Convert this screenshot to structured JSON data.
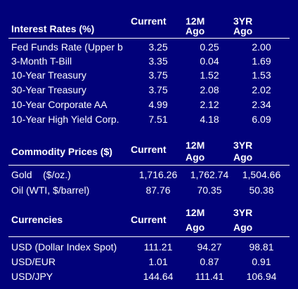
{
  "interest": {
    "header": {
      "label": "Interest Rates (%)",
      "current": "Current",
      "m12_top": "12M",
      "m12_bot": "Ago",
      "y3_top": "3YR",
      "y3_bot": "Ago"
    },
    "rows": [
      {
        "name": "Fed Funds Rate (Upper b",
        "current": "3.25",
        "m12": "0.25",
        "y3": "2.00"
      },
      {
        "name": "3-Month T-Bill",
        "current": "3.35",
        "m12": "0.04",
        "y3": "1.69"
      },
      {
        "name": "10-Year Treasury",
        "current": "3.75",
        "m12": "1.52",
        "y3": "1.53"
      },
      {
        "name": "30-Year Treasury",
        "current": "3.75",
        "m12": "2.08",
        "y3": "2.02"
      },
      {
        "name": "10-Year Corporate AA",
        "current": "4.99",
        "m12": "2.12",
        "y3": "2.34"
      },
      {
        "name": "10-Year High Yield Corp.",
        "current": "7.51",
        "m12": "4.18",
        "y3": "6.09"
      }
    ]
  },
  "commodity": {
    "header": {
      "label": "Commodity Prices ($)",
      "current": "Current",
      "m12_top": "12M",
      "m12_bot": "Ago",
      "y3_top": "3YR",
      "y3_bot": "Ago"
    },
    "rows": [
      {
        "name": "Gold    ($/oz.)",
        "current": "1,716.26",
        "m12": "1,762.74",
        "y3": "1,504.66"
      },
      {
        "name": "Oil (WTI, $/barrel)",
        "current": "87.76",
        "m12": "70.35",
        "y3": "50.38"
      }
    ]
  },
  "currencies": {
    "header": {
      "label": "Currencies",
      "current": "Current",
      "m12_top": "12M",
      "m12_bot": "Ago",
      "y3_top": "3YR",
      "y3_bot": "Ago"
    },
    "rows": [
      {
        "name": "USD (Dollar Index Spot)",
        "current": "111.21",
        "m12": "94.27",
        "y3": "98.81"
      },
      {
        "name": "USD/EUR",
        "current": "1.01",
        "m12": "0.87",
        "y3": "0.91"
      },
      {
        "name": "USD/JPY",
        "current": "144.64",
        "m12": "111.41",
        "y3": "106.94"
      }
    ]
  }
}
